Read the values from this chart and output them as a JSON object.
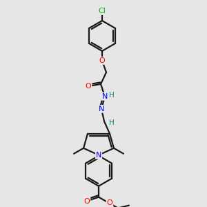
{
  "background_color": "#e6e6e6",
  "bond_color": "#1a1a1a",
  "atom_colors": {
    "N": "#0000ff",
    "O": "#ff0000",
    "Cl": "#00b300",
    "H": "#008080",
    "C": "#1a1a1a"
  },
  "figsize": [
    3.0,
    3.0
  ],
  "dpi": 100
}
